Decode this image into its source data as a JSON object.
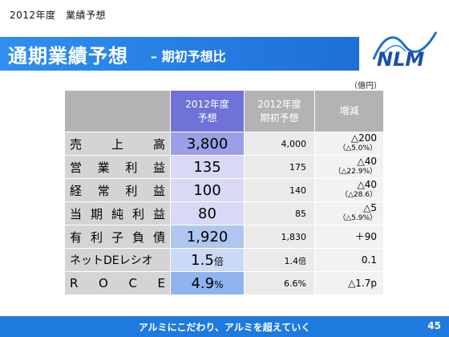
{
  "header": {
    "caption": "2012年度　業績予想",
    "title": "通期業績予想",
    "subtitle": "– 期初予想比",
    "logo_text": "NLM"
  },
  "unit": "（億円）",
  "table": {
    "columns": [
      "2012年度\n予想",
      "2012年度\n期初予想",
      "増減"
    ],
    "rows": [
      {
        "label": "売上高",
        "forecast": "3,800",
        "forecast_unit": "",
        "initial": "4,000",
        "initial_unit": "",
        "change": "△200",
        "change_pct": "（△5.0%）"
      },
      {
        "label": "営業利益",
        "forecast": "135",
        "forecast_unit": "",
        "initial": "175",
        "initial_unit": "",
        "change": "△40",
        "change_pct": "（△22.9%）"
      },
      {
        "label": "経常利益",
        "forecast": "100",
        "forecast_unit": "",
        "initial": "140",
        "initial_unit": "",
        "change": "△40",
        "change_pct": "（△28.6）"
      },
      {
        "label": "当期純利益",
        "forecast": "80",
        "forecast_unit": "",
        "initial": "85",
        "initial_unit": "",
        "change": "△5",
        "change_pct": "（△5.9%）"
      },
      {
        "label": "有利子負債",
        "forecast": "1,920",
        "forecast_unit": "",
        "initial": "1,830",
        "initial_unit": "",
        "change": "＋90",
        "change_pct": ""
      },
      {
        "label": "ネットDEレシオ",
        "forecast": "1.5",
        "forecast_unit": "倍",
        "initial": "1.4",
        "initial_unit": "倍",
        "change": "0.1",
        "change_pct": ""
      },
      {
        "label": "ROCE",
        "forecast": "4.9",
        "forecast_unit": "%",
        "initial": "6.6%",
        "initial_unit": "",
        "change": "△1.7p",
        "change_pct": ""
      }
    ]
  },
  "footer": {
    "slogan": "アルミにこだわり、アルミを超えていく",
    "page_number": "45"
  },
  "colors": {
    "title_bar": "#1e6fd8",
    "forecast_header": "#6f72d6",
    "footer_bar": "#1f7ae0"
  }
}
